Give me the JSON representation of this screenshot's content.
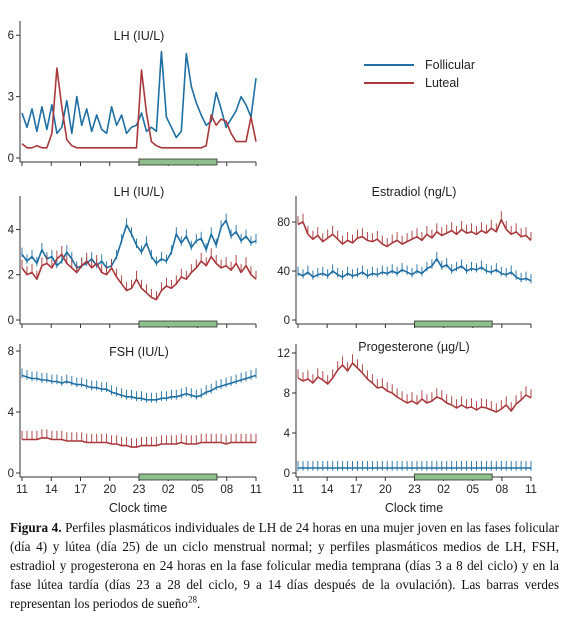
{
  "colors": {
    "follicular": "#1f6fa3",
    "luteal": "#a8383b",
    "sleep_bar": "#8fbf8a",
    "axis": "#333333"
  },
  "chart_data": [
    {
      "type": "line",
      "title": "LH (IU/L)",
      "xlabel": "",
      "ylabel": "",
      "yticks": [
        "0",
        "3",
        "6"
      ],
      "ylim": [
        0,
        6.5
      ],
      "legend": {
        "placement": "top-right",
        "entries": [
          "Follicular",
          "Luteal"
        ]
      },
      "sleep_bar": {
        "from_label": "23",
        "to_label": "07"
      },
      "series": [
        {
          "name": "Follicular",
          "color": "#1f6fa3",
          "values": [
            2.2,
            1.5,
            2.4,
            1.3,
            2.5,
            1.4,
            2.6,
            1.2,
            1.5,
            2.8,
            1.2,
            3.0,
            1.6,
            2.4,
            1.3,
            2.1,
            1.4,
            1.2,
            2.5,
            1.6,
            2.1,
            1.2,
            1.5,
            1.6,
            2.2,
            1.3,
            1.5,
            1.3,
            5.2,
            2.0,
            1.5,
            1.0,
            1.3,
            5.1,
            3.5,
            2.7,
            2.1,
            1.6,
            1.8,
            3.2,
            2.4,
            1.5,
            1.9,
            2.3,
            3.0,
            2.6,
            2.0,
            3.9
          ]
        },
        {
          "name": "Luteal",
          "color": "#a8383b",
          "values": [
            0.7,
            0.5,
            0.5,
            0.6,
            0.5,
            0.5,
            1.2,
            4.4,
            2.5,
            0.9,
            0.6,
            0.5,
            0.5,
            0.5,
            0.5,
            0.5,
            0.5,
            0.5,
            0.5,
            0.5,
            0.5,
            0.5,
            0.5,
            0.5,
            4.3,
            2.2,
            0.8,
            0.6,
            0.5,
            0.5,
            0.5,
            0.5,
            0.5,
            0.5,
            0.5,
            0.5,
            0.5,
            0.6,
            2.1,
            1.6,
            1.9,
            1.8,
            1.2,
            0.8,
            0.8,
            0.8,
            2.0,
            0.8
          ]
        }
      ]
    },
    {
      "type": "line",
      "title": "LH (IU/L)",
      "yticks": [
        "0",
        "2",
        "4"
      ],
      "ylim": [
        0,
        5.3
      ],
      "sleep_bar": {
        "from_label": "23",
        "to_label": "07"
      },
      "series": [
        {
          "name": "Follicular",
          "color": "#1f6fa3",
          "values": [
            2.9,
            2.6,
            2.8,
            2.5,
            3.1,
            2.7,
            2.8,
            2.4,
            2.6,
            3.0,
            2.7,
            2.3,
            2.4,
            2.5,
            2.7,
            2.4,
            2.6,
            2.3,
            2.4,
            2.8,
            3.5,
            4.2,
            3.8,
            3.3,
            3.0,
            3.4,
            2.8,
            2.5,
            2.7,
            2.6,
            3.0,
            3.8,
            3.4,
            3.7,
            3.2,
            3.5,
            3.6,
            3.1,
            3.8,
            3.3,
            4.1,
            4.4,
            3.7,
            3.9,
            3.5,
            3.7,
            3.4,
            3.5
          ]
        },
        {
          "name": "Luteal",
          "color": "#a8383b",
          "values": [
            2.3,
            2.0,
            2.1,
            1.8,
            2.4,
            2.5,
            2.3,
            2.7,
            2.9,
            2.5,
            2.3,
            2.1,
            2.4,
            2.6,
            2.3,
            2.5,
            2.1,
            2.0,
            2.3,
            1.9,
            1.6,
            1.3,
            1.4,
            1.8,
            1.4,
            1.2,
            1.0,
            0.9,
            1.3,
            1.5,
            1.4,
            1.6,
            1.9,
            1.8,
            2.1,
            2.3,
            2.6,
            2.4,
            2.8,
            2.5,
            2.3,
            2.4,
            2.2,
            2.5,
            2.1,
            2.4,
            2.0,
            1.8
          ]
        }
      ]
    },
    {
      "type": "line",
      "title": "Estradiol (ng/L)",
      "yticks": [
        "0",
        "40",
        "80"
      ],
      "ylim": [
        0,
        98
      ],
      "sleep_bar": {
        "from_label": "23",
        "to_label": "07"
      },
      "series": [
        {
          "name": "Follicular",
          "color": "#1f6fa3",
          "values": [
            38,
            36,
            39,
            35,
            37,
            38,
            36,
            40,
            37,
            35,
            38,
            36,
            37,
            39,
            36,
            38,
            37,
            39,
            38,
            40,
            38,
            41,
            39,
            37,
            40,
            38,
            42,
            44,
            50,
            43,
            45,
            40,
            42,
            44,
            40,
            42,
            41,
            43,
            40,
            39,
            41,
            38,
            37,
            39,
            35,
            33,
            34,
            32
          ]
        },
        {
          "name": "Luteal",
          "color": "#a8383b",
          "values": [
            78,
            80,
            70,
            66,
            69,
            64,
            67,
            70,
            66,
            62,
            65,
            63,
            67,
            68,
            65,
            64,
            66,
            62,
            60,
            63,
            65,
            62,
            64,
            66,
            68,
            65,
            70,
            67,
            72,
            69,
            71,
            73,
            70,
            74,
            71,
            72,
            70,
            73,
            71,
            75,
            72,
            82,
            74,
            70,
            72,
            68,
            69,
            65
          ]
        }
      ]
    },
    {
      "type": "line",
      "title": "FSH (IU/L)",
      "yticks": [
        "0",
        "4",
        "8"
      ],
      "ylim": [
        0,
        8.2
      ],
      "sleep_bar": {
        "from_label": "23",
        "to_label": "07"
      },
      "series": [
        {
          "name": "Follicular",
          "color": "#1f6fa3",
          "values": [
            6.4,
            6.3,
            6.2,
            6.2,
            6.1,
            6.1,
            6.0,
            6.0,
            5.9,
            6.0,
            5.9,
            5.8,
            5.8,
            5.7,
            5.6,
            5.6,
            5.5,
            5.5,
            5.3,
            5.2,
            5.1,
            5.0,
            5.0,
            4.9,
            4.9,
            4.8,
            4.8,
            4.8,
            4.9,
            4.9,
            5.0,
            5.0,
            5.1,
            5.2,
            5.1,
            5.0,
            5.1,
            5.3,
            5.4,
            5.6,
            5.7,
            5.8,
            5.9,
            6.0,
            6.1,
            6.2,
            6.3,
            6.4
          ]
        },
        {
          "name": "Luteal",
          "color": "#a8383b",
          "values": [
            2.2,
            2.2,
            2.2,
            2.2,
            2.3,
            2.3,
            2.2,
            2.2,
            2.2,
            2.1,
            2.1,
            2.1,
            2.1,
            2.0,
            2.0,
            2.0,
            2.0,
            2.0,
            1.9,
            1.9,
            1.8,
            1.8,
            1.7,
            1.7,
            1.8,
            1.8,
            1.8,
            1.8,
            1.9,
            1.9,
            1.9,
            1.9,
            2.0,
            1.9,
            1.9,
            1.9,
            2.0,
            2.0,
            2.0,
            2.0,
            2.0,
            1.9,
            2.0,
            2.0,
            2.0,
            2.0,
            2.0,
            2.0
          ]
        }
      ]
    },
    {
      "type": "line",
      "title": "Progesterone (µg/L)",
      "yticks": [
        "0",
        "4",
        "8",
        "12"
      ],
      "ylim": [
        0,
        12.5
      ],
      "sleep_bar": {
        "from_label": "23",
        "to_label": "07"
      },
      "series": [
        {
          "name": "Follicular",
          "color": "#1f6fa3",
          "values": [
            0.5,
            0.5,
            0.5,
            0.5,
            0.5,
            0.5,
            0.5,
            0.5,
            0.5,
            0.5,
            0.5,
            0.5,
            0.5,
            0.5,
            0.5,
            0.5,
            0.5,
            0.5,
            0.5,
            0.5,
            0.5,
            0.5,
            0.5,
            0.5,
            0.5,
            0.5,
            0.5,
            0.5,
            0.5,
            0.5,
            0.5,
            0.5,
            0.5,
            0.5,
            0.5,
            0.5,
            0.5,
            0.5,
            0.5,
            0.5,
            0.5,
            0.5,
            0.5,
            0.5,
            0.5,
            0.5,
            0.5,
            0.5
          ]
        },
        {
          "name": "Luteal",
          "color": "#a8383b",
          "values": [
            9.5,
            9.2,
            9.4,
            9.0,
            9.6,
            9.3,
            8.9,
            9.5,
            10.3,
            10.8,
            10.2,
            11.0,
            10.5,
            10.0,
            9.4,
            9.0,
            8.5,
            8.6,
            8.2,
            8.0,
            7.6,
            7.3,
            7.0,
            7.2,
            6.9,
            7.4,
            7.0,
            7.2,
            7.6,
            7.4,
            7.0,
            6.8,
            6.5,
            6.8,
            6.5,
            6.6,
            6.3,
            6.6,
            6.5,
            6.3,
            6.1,
            6.4,
            6.8,
            6.2,
            6.9,
            7.3,
            7.8,
            7.5
          ]
        }
      ]
    }
  ],
  "x_axis": {
    "ticks": [
      "11",
      "14",
      "17",
      "20",
      "23",
      "02",
      "05",
      "08",
      "11"
    ],
    "label": "Clock time"
  },
  "caption": {
    "label": "Figura 4.",
    "text": " Perfiles plasmáticos individuales de LH de 24 horas en una mujer joven en las fases folicular (día 4) y lútea (día 25) de un ciclo menstrual normal; y perfiles plasmáticos medios de LH, FSH, estradiol y progesterona en 24 horas en la fase folicular media temprana (días 3 a 8 del ciclo) y en la fase lútea tardía (días 23 a 28 del ciclo, 9 a 14 días después de la ovulación). Las barras verdes representan los periodos de sueño",
    "ref": "28",
    "end": "."
  }
}
